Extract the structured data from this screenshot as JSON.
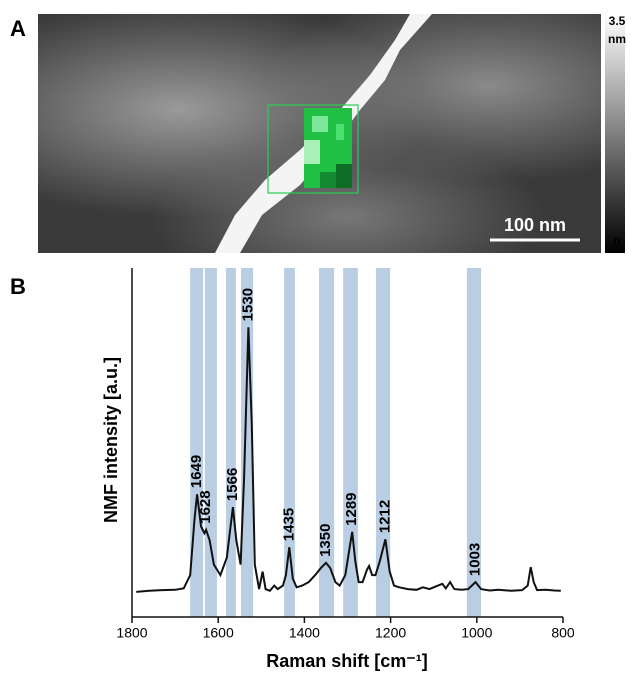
{
  "chart_data": [
    {
      "type": "image",
      "label": "A",
      "clim": [
        0,
        3.5
      ],
      "cticks": [
        0,
        3.5
      ],
      "colorbar_unit": "nm",
      "scale_bar": "100 nm"
    },
    {
      "type": "line",
      "label": "B",
      "xlabel": "Raman shift [cm⁻¹]",
      "ylabel": "NMF intensity [a.u.]",
      "xlim": [
        1800,
        800
      ],
      "xticks": [
        1800,
        1600,
        1400,
        1200,
        1000,
        800
      ],
      "ylim": [
        0,
        1
      ],
      "band_color": "#b9cde3",
      "bands": [
        [
          1635,
          1665
        ],
        [
          1603,
          1631
        ],
        [
          1559,
          1582
        ],
        [
          1519,
          1547
        ],
        [
          1422,
          1447
        ],
        [
          1331,
          1366
        ],
        [
          1276,
          1310
        ],
        [
          1201,
          1234
        ],
        [
          990,
          1023
        ]
      ],
      "peaks": [
        1649,
        1628,
        1566,
        1530,
        1435,
        1350,
        1289,
        1212,
        1003
      ],
      "series": [
        {
          "color": "#111111",
          "x": [
            1790,
            1760,
            1730,
            1700,
            1680,
            1665,
            1655,
            1649,
            1640,
            1632,
            1628,
            1620,
            1610,
            1595,
            1580,
            1566,
            1558,
            1548,
            1540,
            1530,
            1522,
            1515,
            1505,
            1497,
            1490,
            1480,
            1470,
            1462,
            1450,
            1443,
            1435,
            1427,
            1418,
            1405,
            1390,
            1375,
            1362,
            1350,
            1340,
            1328,
            1318,
            1305,
            1295,
            1289,
            1282,
            1274,
            1265,
            1255,
            1250,
            1243,
            1235,
            1225,
            1212,
            1202,
            1192,
            1180,
            1160,
            1140,
            1125,
            1110,
            1090,
            1080,
            1072,
            1062,
            1052,
            1035,
            1020,
            1003,
            990,
            970,
            950,
            920,
            895,
            882,
            875,
            868,
            860,
            840,
            820,
            805
          ],
          "values": [
            0.072,
            0.075,
            0.077,
            0.078,
            0.082,
            0.12,
            0.28,
            0.352,
            0.26,
            0.24,
            0.25,
            0.22,
            0.15,
            0.12,
            0.17,
            0.315,
            0.22,
            0.15,
            0.4,
            0.83,
            0.55,
            0.15,
            0.08,
            0.13,
            0.08,
            0.075,
            0.09,
            0.08,
            0.09,
            0.12,
            0.2,
            0.11,
            0.085,
            0.09,
            0.1,
            0.12,
            0.14,
            0.155,
            0.14,
            0.1,
            0.09,
            0.12,
            0.2,
            0.244,
            0.16,
            0.1,
            0.1,
            0.135,
            0.146,
            0.12,
            0.12,
            0.16,
            0.223,
            0.13,
            0.09,
            0.085,
            0.08,
            0.078,
            0.085,
            0.08,
            0.09,
            0.095,
            0.082,
            0.1,
            0.08,
            0.078,
            0.08,
            0.1,
            0.08,
            0.076,
            0.078,
            0.075,
            0.077,
            0.09,
            0.143,
            0.1,
            0.077,
            0.078,
            0.076,
            0.075
          ]
        }
      ]
    }
  ]
}
